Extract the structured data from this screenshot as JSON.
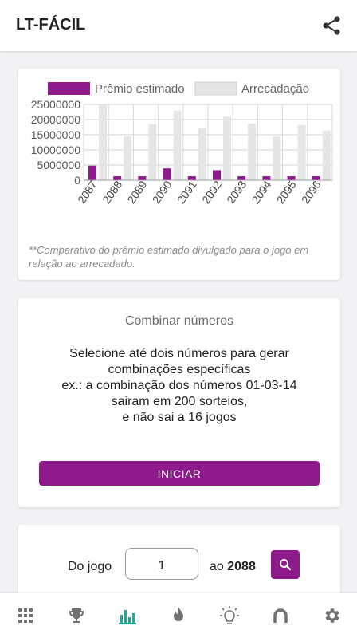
{
  "app": {
    "title": "LT-FÁCIL"
  },
  "icons": {
    "share": "share-icon",
    "search": "search-icon",
    "nav": [
      "grid-icon",
      "trophy-icon",
      "bar-chart-icon",
      "fire-icon",
      "lightbulb-icon",
      "horseshoe-icon",
      "gear-icon"
    ]
  },
  "colors": {
    "primary": "#8f1a8c",
    "bar_estimated": "#8f1a8c",
    "bar_collected": "#e6e6e6",
    "nav_active": "#20a898",
    "nav_inactive": "#707070"
  },
  "chart_data": {
    "type": "bar",
    "categories": [
      "2087",
      "2088",
      "2089",
      "2090",
      "2091",
      "2092",
      "2093",
      "2094",
      "2095",
      "2096"
    ],
    "series": [
      {
        "name": "Prêmio estimado",
        "values": [
          4800000,
          1300000,
          1300000,
          3900000,
          1300000,
          3300000,
          1300000,
          1300000,
          1300000,
          1300000
        ]
      },
      {
        "name": "Arrecadação",
        "values": [
          24800000,
          14500000,
          18500000,
          23000000,
          17300000,
          21000000,
          18700000,
          14400000,
          18200000,
          16400000
        ]
      }
    ],
    "yticks": [
      "25000000",
      "20000000",
      "15000000",
      "10000000",
      "5000000",
      "0"
    ],
    "ylim": [
      0,
      25000000
    ],
    "legend": "top",
    "grid": true,
    "note": "**Comparativo do prêmio estimado divulgado para o jogo em relação ao arrecadado."
  },
  "combine": {
    "title": "Combinar números",
    "description_lines": [
      "Selecione até dois números para gerar",
      "combinações específicas",
      "ex.: a combinação dos números 01-03-14",
      "sairam em 200 sorteios,",
      "e não sai a 16 jogos"
    ],
    "button_label": "INICIAR"
  },
  "range": {
    "from_label": "Do jogo",
    "from_value": "1",
    "to_label": "ao",
    "to_value": "2088"
  },
  "bottom_nav": {
    "active_index": 2
  }
}
